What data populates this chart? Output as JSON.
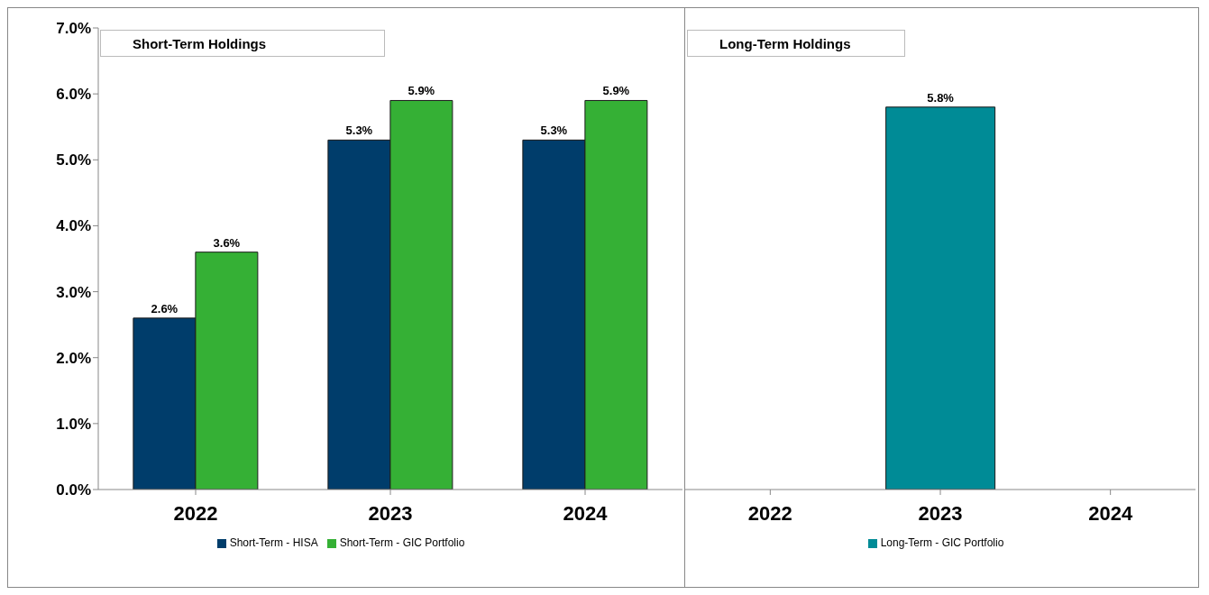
{
  "chart_data": [
    {
      "type": "bar",
      "title": "Short-Term Holdings",
      "categories": [
        "2022",
        "2023",
        "2024"
      ],
      "series": [
        {
          "name": "Short-Term - HISA",
          "color": "#003d6b",
          "values": [
            2.6,
            5.3,
            5.3
          ],
          "value_labels": [
            "2.6%",
            "5.3%",
            "5.3%"
          ]
        },
        {
          "name": "Short-Term - GIC Portfolio",
          "color": "#35b035",
          "values": [
            3.6,
            5.9,
            5.9
          ],
          "value_labels": [
            "3.6%",
            "5.9%",
            "5.9%"
          ]
        }
      ],
      "ylim": [
        0,
        7
      ],
      "yticks": [
        {
          "value": 0,
          "label": "0.0%"
        },
        {
          "value": 1,
          "label": "1.0%"
        },
        {
          "value": 2,
          "label": "2.0%"
        },
        {
          "value": 3,
          "label": "3.0%"
        },
        {
          "value": 4,
          "label": "4.0%"
        },
        {
          "value": 5,
          "label": "5.0%"
        },
        {
          "value": 6,
          "label": "6.0%"
        },
        {
          "value": 7,
          "label": "7.0%"
        }
      ],
      "legend": "bottom"
    },
    {
      "type": "bar",
      "title": "Long-Term Holdings",
      "categories": [
        "2022",
        "2023",
        "2024"
      ],
      "series": [
        {
          "name": "Long-Term - GIC Portfolio",
          "color": "#008b96",
          "values": [
            null,
            5.8,
            null
          ],
          "value_labels": [
            null,
            "5.8%",
            null
          ]
        }
      ],
      "ylim": [
        0,
        7
      ],
      "tick_labels": "x",
      "legend": "bottom"
    }
  ]
}
